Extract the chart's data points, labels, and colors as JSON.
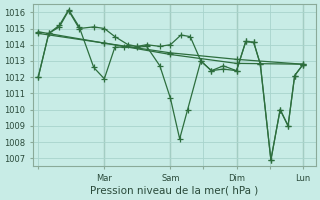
{
  "bg_color": "#c8ece6",
  "grid_color": "#a8d4cc",
  "line_color": "#2d6e3e",
  "marker": "+",
  "markersize": 4,
  "linewidth": 0.9,
  "ylim": [
    1006.5,
    1016.5
  ],
  "yticks": [
    1007,
    1008,
    1009,
    1010,
    1011,
    1012,
    1013,
    1014,
    1015,
    1016
  ],
  "xlabel": "Pression niveau de la mer( hPa )",
  "xlabel_fontsize": 7.5,
  "tick_fontsize": 6,
  "xtick_labels": [
    "",
    "Mar",
    "Sam",
    "",
    "Dim",
    "",
    "Lun"
  ],
  "xtick_positions": [
    0,
    0.25,
    0.5,
    0.625,
    0.75,
    0.875,
    1.0
  ],
  "vline_color": "#8aaa99",
  "vline_positions": [
    0.25,
    0.5,
    0.75,
    1.0
  ],
  "line1_x": [
    0.0,
    0.04,
    0.08,
    0.115,
    0.155,
    0.21,
    0.25,
    0.29,
    0.34,
    0.375,
    0.41,
    0.46,
    0.5,
    0.54,
    0.575,
    0.615,
    0.655,
    0.7,
    0.75,
    0.785,
    0.815,
    0.84,
    0.88,
    0.915,
    0.945,
    0.97,
    1.0
  ],
  "line1_y": [
    1012.0,
    1014.7,
    1015.1,
    1016.1,
    1015.0,
    1015.1,
    1015.0,
    1014.5,
    1014.0,
    1013.9,
    1014.0,
    1013.9,
    1014.0,
    1014.6,
    1014.5,
    1013.0,
    1012.4,
    1012.7,
    1012.4,
    1014.2,
    1014.15,
    1012.8,
    1006.9,
    1010.0,
    1009.0,
    1012.1,
    1012.75
  ],
  "line2_x": [
    0.0,
    0.25,
    0.5,
    0.75,
    1.0
  ],
  "line2_y": [
    1014.7,
    1014.1,
    1013.5,
    1013.1,
    1012.8
  ],
  "line3_x": [
    0.0,
    0.25,
    0.5,
    0.75,
    1.0
  ],
  "line3_y": [
    1014.8,
    1014.1,
    1013.4,
    1012.85,
    1012.8
  ],
  "line4_x": [
    0.0,
    0.04,
    0.08,
    0.115,
    0.155,
    0.21,
    0.25,
    0.29,
    0.325,
    0.375,
    0.41,
    0.46,
    0.5,
    0.535,
    0.565,
    0.615,
    0.655,
    0.7,
    0.75,
    0.785,
    0.815,
    0.84,
    0.88,
    0.915,
    0.945,
    0.97,
    1.0
  ],
  "line4_y": [
    1012.0,
    1014.7,
    1015.2,
    1016.15,
    1015.1,
    1012.6,
    1011.9,
    1013.85,
    1013.85,
    1013.85,
    1013.9,
    1012.7,
    1010.7,
    1008.2,
    1010.0,
    1013.0,
    1012.4,
    1012.5,
    1012.4,
    1014.2,
    1014.15,
    1012.8,
    1006.9,
    1010.0,
    1009.0,
    1012.1,
    1012.75
  ]
}
